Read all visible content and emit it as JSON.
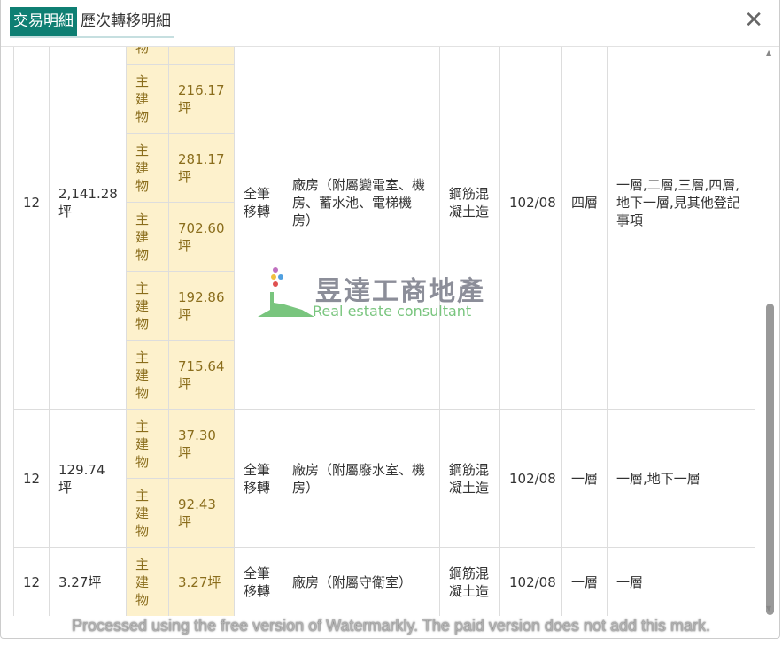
{
  "tabs": [
    {
      "label": "交易明細",
      "active": true
    },
    {
      "label": "歷次轉移明細",
      "active": false
    }
  ],
  "close_label": "✕",
  "rows": [
    {
      "level": "12",
      "total_area": "2,141.28坪",
      "transfer": "全筆移轉",
      "use": "廠房（附屬變電室、機房、蓄水池、電梯機房）",
      "material": "鋼筋混凝土造",
      "date": "102/08",
      "floors": "四層",
      "floor_detail": "一層,二層,三層,四層,地下一層,見其他登記事項",
      "subs": [
        {
          "type": "主建物",
          "area": ""
        },
        {
          "type": "主建物",
          "area": "216.17坪"
        },
        {
          "type": "主建物",
          "area": "281.17坪"
        },
        {
          "type": "主建物",
          "area": "702.60坪"
        },
        {
          "type": "主建物",
          "area": "192.86坪"
        },
        {
          "type": "主建物",
          "area": "715.64坪"
        }
      ]
    },
    {
      "level": "12",
      "total_area": "129.74坪",
      "transfer": "全筆移轉",
      "use": "廠房（附屬廢水室、機房）",
      "material": "鋼筋混凝土造",
      "date": "102/08",
      "floors": "一層",
      "floor_detail": "一層,地下一層",
      "subs": [
        {
          "type": "主建物",
          "area": "37.30坪"
        },
        {
          "type": "主建物",
          "area": "92.43坪"
        }
      ]
    },
    {
      "level": "12",
      "total_area": "3.27坪",
      "transfer": "全筆移轉",
      "use": "廠房（附屬守衛室）",
      "material": "鋼筋混凝土造",
      "date": "102/08",
      "floors": "一層",
      "floor_detail": "一層",
      "subs": [
        {
          "type": "主建物",
          "area": "3.27坪"
        }
      ]
    }
  ],
  "logo": {
    "cn": "昱達工商地產",
    "en": "Real estate consultant"
  },
  "watermark": "Processed using the free version of Watermarkly. The paid version does not add this mark.",
  "colors": {
    "active_tab": "#0e7f73",
    "sub_cell_bg": "#fdf1cc",
    "sub_cell_text": "#8a6d1c"
  }
}
